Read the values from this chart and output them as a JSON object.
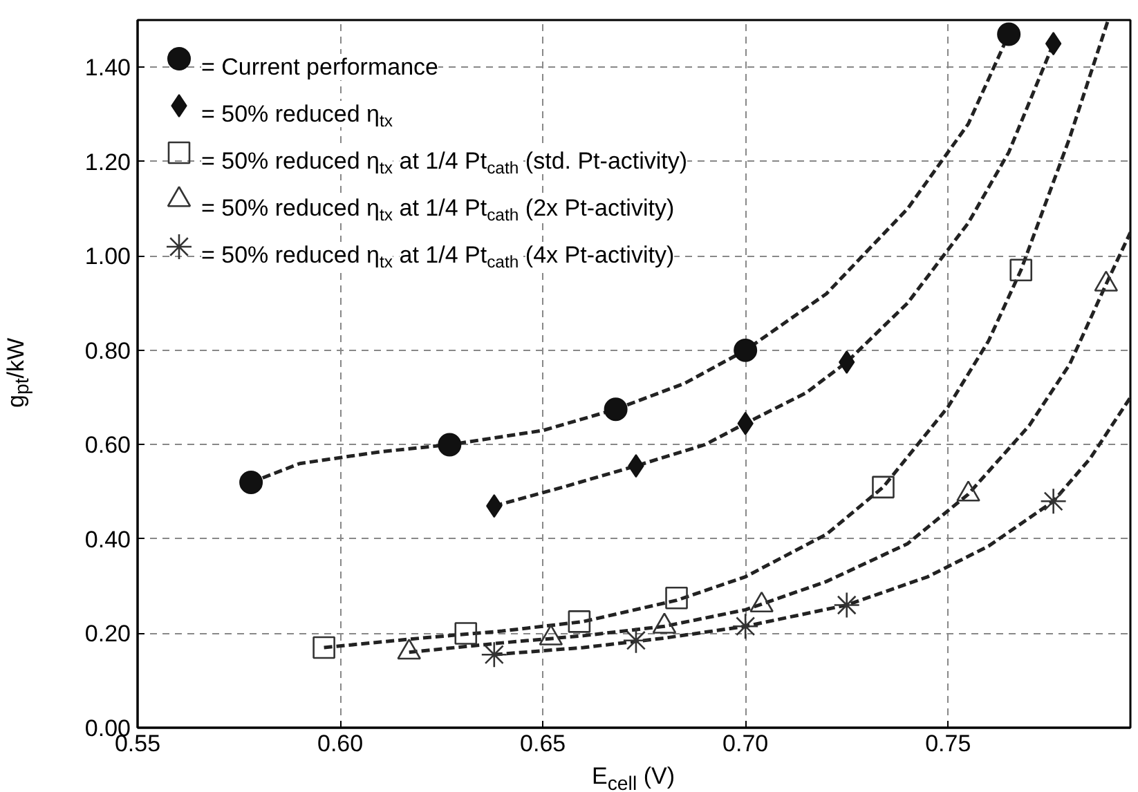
{
  "chart_data": {
    "type": "scatter",
    "xlabel": "E$_{cell}$ (V)",
    "ylabel": "g$_{pt}$/kW",
    "xlim": [
      0.55,
      0.795
    ],
    "ylim": [
      0,
      1.5
    ],
    "xticks": [
      {
        "value": 0.55,
        "label": "0.55"
      },
      {
        "value": 0.6,
        "label": "0.60"
      },
      {
        "value": 0.65,
        "label": "0.65"
      },
      {
        "value": 0.7,
        "label": "0.70"
      },
      {
        "value": 0.75,
        "label": "0.75"
      }
    ],
    "yticks": [
      {
        "value": 0,
        "label": "0.00"
      },
      {
        "value": 0.2,
        "label": "0.20"
      },
      {
        "value": 0.4,
        "label": "0.40"
      },
      {
        "value": 0.6,
        "label": "0.60"
      },
      {
        "value": 0.8,
        "label": "0.80"
      },
      {
        "value": 1.0,
        "label": "1.00"
      },
      {
        "value": 1.2,
        "label": "1.20"
      },
      {
        "value": 1.4,
        "label": "1.40"
      }
    ],
    "grid": true,
    "legend": "top left",
    "series": [
      {
        "name": "= Current performance",
        "color": "#111111",
        "marker": "circle",
        "x": [
          0.578,
          0.627,
          0.668,
          0.7,
          0.765
        ],
        "values": [
          0.52,
          0.6,
          0.675,
          0.8,
          1.47
        ]
      },
      {
        "name": "= 50% reduced η$_{tx}$",
        "color": "#111111",
        "marker": "diamond",
        "x": [
          0.638,
          0.673,
          0.7,
          0.725,
          0.776
        ],
        "values": [
          0.47,
          0.555,
          0.645,
          0.775,
          1.45
        ]
      },
      {
        "name": "= 50% reduced η$_{tx}$ at 1/4 Pt$_{cath}$ (std. Pt-activity)",
        "color": "#333333",
        "marker": "square",
        "x": [
          0.596,
          0.631,
          0.659,
          0.683,
          0.734,
          0.768
        ],
        "values": [
          0.17,
          0.2,
          0.225,
          0.275,
          0.51,
          0.97
        ]
      },
      {
        "name": "= 50% reduced η$_{tx}$ at 1/4 Pt$_{cath}$ (2x Pt-activity)",
        "color": "#333333",
        "marker": "triangle",
        "x": [
          0.617,
          0.652,
          0.68,
          0.704,
          0.755,
          0.789
        ],
        "values": [
          0.16,
          0.19,
          0.215,
          0.26,
          0.495,
          0.94
        ]
      },
      {
        "name": "= 50% reduced η$_{tx}$ at 1/4 Pt$_{cath}$ (4x Pt-activity)",
        "color": "#333333",
        "marker": "cross",
        "x": [
          0.638,
          0.673,
          0.7,
          0.725,
          0.776
        ],
        "values": [
          0.155,
          0.185,
          0.215,
          0.26,
          0.48
        ]
      },
      {
        "type": "line",
        "color": "#222222",
        "marker": "none",
        "line_style": "dashed",
        "x": [
          0.578,
          0.59,
          0.61,
          0.627,
          0.65,
          0.668,
          0.685,
          0.7,
          0.72,
          0.74,
          0.755,
          0.765
        ],
        "values": [
          0.52,
          0.56,
          0.585,
          0.6,
          0.63,
          0.675,
          0.73,
          0.8,
          0.92,
          1.1,
          1.28,
          1.47
        ]
      },
      {
        "type": "line",
        "color": "#222222",
        "marker": "none",
        "line_style": "dashed",
        "x": [
          0.638,
          0.655,
          0.673,
          0.69,
          0.7,
          0.715,
          0.725,
          0.74,
          0.755,
          0.765,
          0.776
        ],
        "values": [
          0.47,
          0.51,
          0.555,
          0.6,
          0.645,
          0.71,
          0.775,
          0.9,
          1.07,
          1.22,
          1.45
        ]
      },
      {
        "type": "line",
        "color": "#222222",
        "marker": "none",
        "line_style": "dashed",
        "x": [
          0.596,
          0.62,
          0.64,
          0.66,
          0.683,
          0.7,
          0.72,
          0.734,
          0.75,
          0.76,
          0.768,
          0.78,
          0.7895
        ],
        "values": [
          0.17,
          0.19,
          0.205,
          0.225,
          0.27,
          0.32,
          0.41,
          0.51,
          0.68,
          0.82,
          0.97,
          1.25,
          1.5
        ]
      },
      {
        "type": "line",
        "color": "#222222",
        "marker": "none",
        "line_style": "dashed",
        "x": [
          0.617,
          0.64,
          0.66,
          0.68,
          0.7,
          0.72,
          0.74,
          0.755,
          0.77,
          0.78,
          0.789,
          0.795
        ],
        "values": [
          0.16,
          0.18,
          0.195,
          0.215,
          0.25,
          0.31,
          0.39,
          0.495,
          0.64,
          0.77,
          0.94,
          1.05
        ]
      },
      {
        "type": "line",
        "color": "#222222",
        "marker": "none",
        "line_style": "dashed",
        "x": [
          0.638,
          0.66,
          0.68,
          0.7,
          0.725,
          0.745,
          0.76,
          0.776,
          0.785,
          0.795
        ],
        "values": [
          0.155,
          0.17,
          0.19,
          0.215,
          0.26,
          0.32,
          0.385,
          0.48,
          0.57,
          0.7
        ]
      }
    ]
  }
}
